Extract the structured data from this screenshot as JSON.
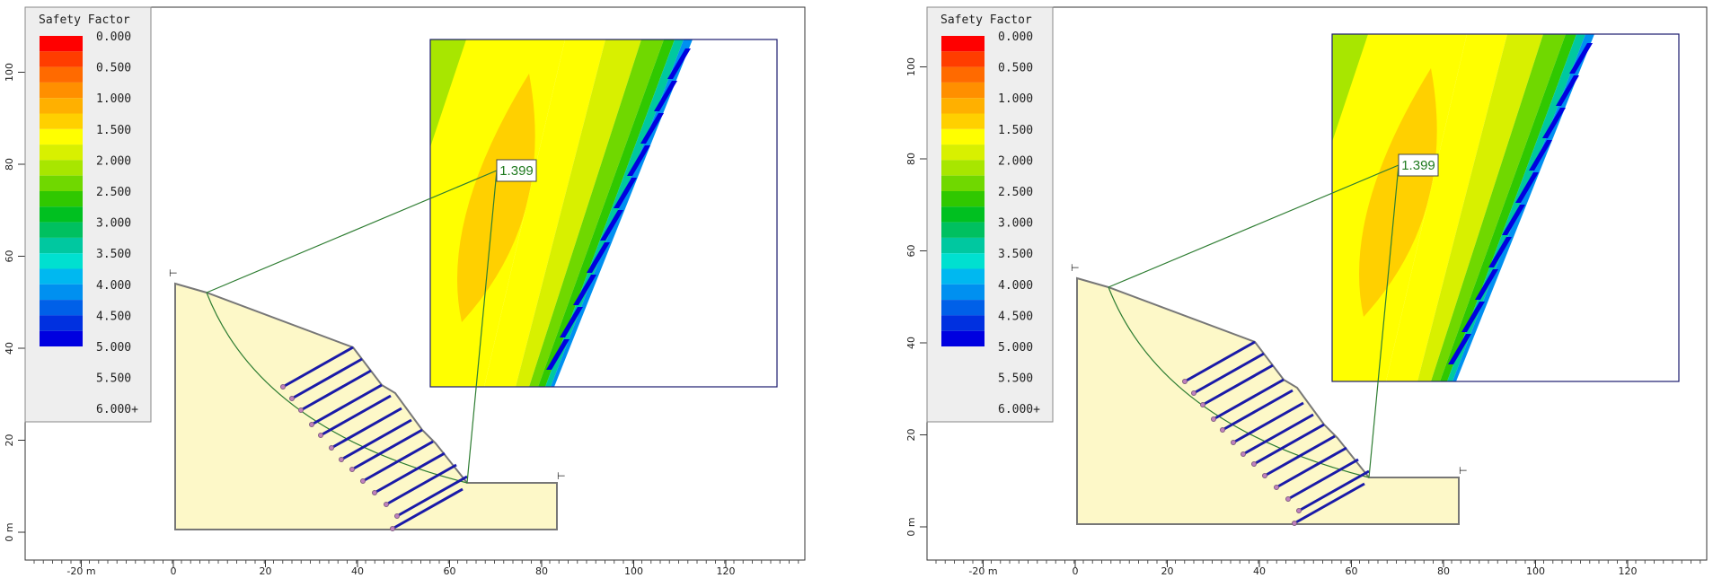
{
  "legend": {
    "title": "Safety Factor",
    "colors": [
      "#ff0000",
      "#ff3d00",
      "#ff6a00",
      "#ff8f00",
      "#ffb000",
      "#ffd000",
      "#ffff00",
      "#d8f000",
      "#a8e600",
      "#70d800",
      "#30c800",
      "#00c020",
      "#00c060",
      "#00c8a0",
      "#00e0d0",
      "#00b8f0",
      "#0090f0",
      "#0060e8",
      "#0030e0",
      "#0000e0"
    ],
    "labels": [
      "0.000",
      "0.500",
      "1.000",
      "1.500",
      "2.000",
      "2.500",
      "3.000",
      "3.500",
      "4.000",
      "4.500",
      "5.000",
      "5.500",
      "6.000+"
    ]
  },
  "axes": {
    "x_ticks": [
      "-20 m",
      "0",
      "20",
      "40",
      "60",
      "80",
      "100",
      "120"
    ],
    "y_ticks": [
      "0 m",
      "20",
      "40",
      "60",
      "80",
      "100"
    ]
  },
  "panels": [
    {
      "id": "left",
      "safety_factor_label": "1.399"
    },
    {
      "id": "right",
      "safety_factor_label": "1.399"
    }
  ],
  "colors": {
    "slope_fill": "#fdf8c8",
    "anchor_blue": "#1a1aa8",
    "slip_line": "#2e7d32",
    "zoom_border": "#1a1a6e"
  }
}
